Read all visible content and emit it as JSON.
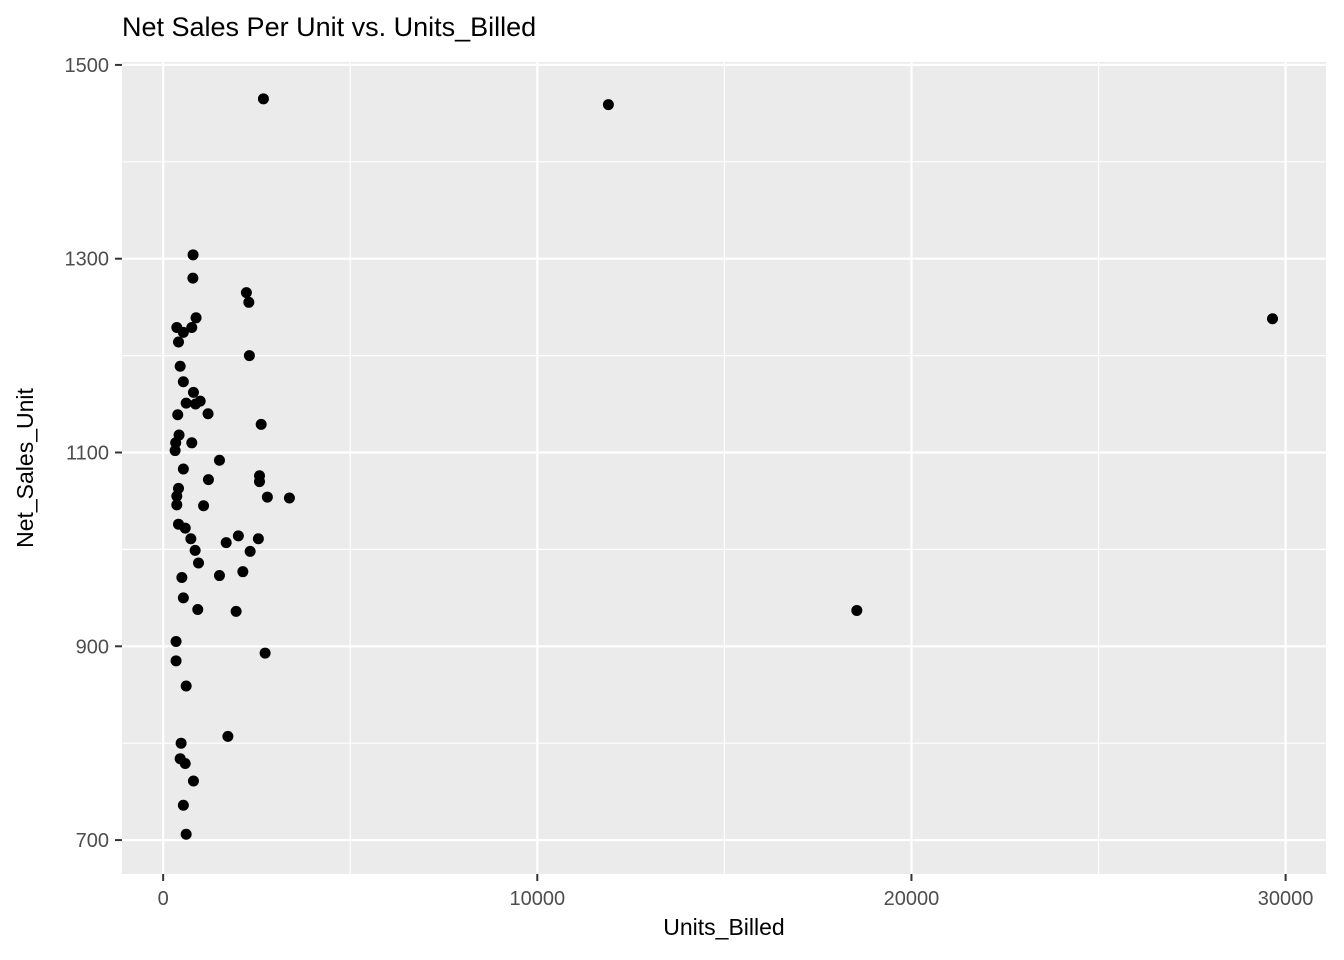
{
  "chart_data": {
    "type": "scatter",
    "title": "Net Sales Per Unit vs. Units_Billed",
    "xlabel": "Units_Billed",
    "ylabel": "Net_Sales_Unit",
    "xlim": [
      -1100,
      31080
    ],
    "ylim": [
      665,
      1503
    ],
    "x_major_ticks": [
      0,
      10000,
      20000,
      30000
    ],
    "x_minor_ticks": [
      5000,
      15000,
      25000
    ],
    "y_major_ticks": [
      700,
      900,
      1100,
      1300,
      1500
    ],
    "y_minor_ticks": [
      800,
      1000,
      1200,
      1400
    ],
    "grid": true,
    "legend": "none",
    "panel_bg": "#EBEBEB",
    "grid_color": "#FFFFFF",
    "tick_mark_color": "#333333",
    "tick_label_color": "#4D4D4D",
    "point_color": "#000000",
    "points": [
      [
        800,
        1304
      ],
      [
        795,
        1280
      ],
      [
        2225,
        1265
      ],
      [
        2290,
        1255
      ],
      [
        880,
        1239
      ],
      [
        765,
        1229
      ],
      [
        365,
        1229
      ],
      [
        540,
        1224
      ],
      [
        410,
        1214
      ],
      [
        2305,
        1200
      ],
      [
        455,
        1189
      ],
      [
        540,
        1173
      ],
      [
        810,
        1162
      ],
      [
        990,
        1153
      ],
      [
        865,
        1150
      ],
      [
        615,
        1151
      ],
      [
        390,
        1139
      ],
      [
        1200,
        1140
      ],
      [
        2620,
        1129
      ],
      [
        425,
        1118
      ],
      [
        335,
        1110
      ],
      [
        765,
        1110
      ],
      [
        320,
        1102
      ],
      [
        1505,
        1092
      ],
      [
        540,
        1083
      ],
      [
        1210,
        1072
      ],
      [
        2575,
        1076
      ],
      [
        2575,
        1070
      ],
      [
        410,
        1063
      ],
      [
        365,
        1055
      ],
      [
        365,
        1046
      ],
      [
        1080,
        1045
      ],
      [
        2785,
        1054
      ],
      [
        3375,
        1053
      ],
      [
        410,
        1026
      ],
      [
        590,
        1022
      ],
      [
        740,
        1011
      ],
      [
        855,
        999
      ],
      [
        1685,
        1007
      ],
      [
        2010,
        1014
      ],
      [
        2545,
        1011
      ],
      [
        2325,
        998
      ],
      [
        945,
        986
      ],
      [
        500,
        971
      ],
      [
        1505,
        973
      ],
      [
        2130,
        977
      ],
      [
        540,
        950
      ],
      [
        925,
        938
      ],
      [
        1950,
        936
      ],
      [
        345,
        905
      ],
      [
        2725,
        893
      ],
      [
        345,
        885
      ],
      [
        615,
        859
      ],
      [
        1730,
        807
      ],
      [
        480,
        800
      ],
      [
        455,
        784
      ],
      [
        590,
        779
      ],
      [
        810,
        761
      ],
      [
        540,
        736
      ],
      [
        615,
        706
      ],
      [
        2680,
        1465
      ],
      [
        11900,
        1459
      ],
      [
        18540,
        937
      ],
      [
        29650,
        1238
      ]
    ]
  }
}
